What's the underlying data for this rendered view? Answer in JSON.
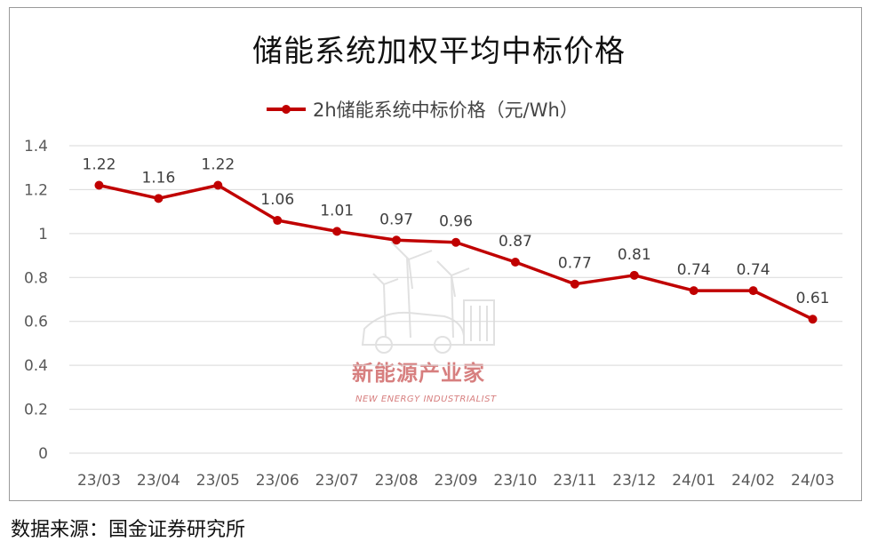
{
  "chart_data": {
    "type": "line",
    "title": "储能系统加权平均中标价格",
    "categories": [
      "23/03",
      "23/04",
      "23/05",
      "23/06",
      "23/07",
      "23/08",
      "23/09",
      "23/10",
      "23/11",
      "23/12",
      "24/01",
      "24/02",
      "24/03"
    ],
    "series": [
      {
        "name": "2h储能系统中标价格（元/Wh）",
        "values": [
          1.22,
          1.16,
          1.22,
          1.06,
          1.01,
          0.97,
          0.96,
          0.87,
          0.77,
          0.81,
          0.74,
          0.74,
          0.61
        ],
        "labels": [
          "1.22",
          "1.16",
          "1.22",
          "1.06",
          "1.01",
          "0.97",
          "0.96",
          "0.87",
          "0.77",
          "0.81",
          "0.74",
          "0.74",
          "0.61"
        ],
        "color": "#c00000"
      }
    ],
    "yticks": [
      "0",
      "0.2",
      "0.4",
      "0.6",
      "0.8",
      "1",
      "1.2",
      "1.4"
    ],
    "ylim": [
      0,
      1.4
    ],
    "grid": true,
    "legend": "top-center"
  },
  "source_note": "数据来源：国金证券研究所",
  "watermark": {
    "title": "新能源产业家",
    "subtitle": "NEW ENERGY INDUSTRIALIST"
  }
}
